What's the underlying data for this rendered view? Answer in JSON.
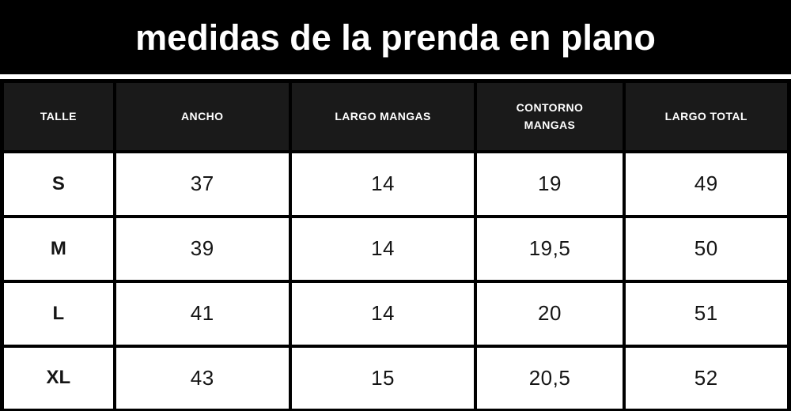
{
  "title": "medidas de la prenda en plano",
  "colors": {
    "title_band_bg": "#000000",
    "title_text": "#ffffff",
    "header_cell_bg": "#1a1a1a",
    "header_text": "#ffffff",
    "grid_border": "#000000",
    "cell_bg": "#ffffff",
    "cell_text": "#151515"
  },
  "chart_data": {
    "type": "table",
    "title": "medidas de la prenda en plano",
    "columns": [
      "TALLE",
      "ANCHO",
      "LARGO MANGAS",
      "CONTORNO MANGAS",
      "LARGO TOTAL"
    ],
    "rows": [
      [
        "S",
        "37",
        "14",
        "19",
        "49"
      ],
      [
        "M",
        "39",
        "14",
        "19,5",
        "50"
      ],
      [
        "L",
        "41",
        "14",
        "20",
        "51"
      ],
      [
        "XL",
        "43",
        "15",
        "20,5",
        "52"
      ]
    ]
  }
}
